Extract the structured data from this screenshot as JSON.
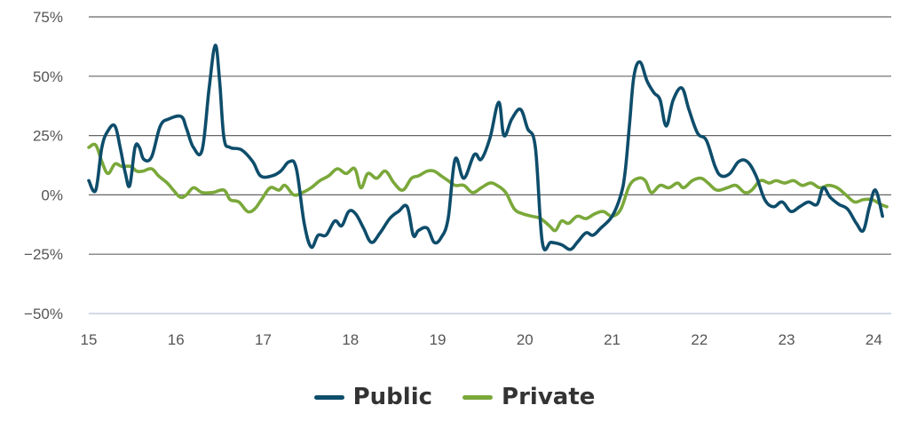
{
  "chart_data": {
    "type": "line",
    "title": "",
    "xlabel": "",
    "ylabel": "",
    "xlim": [
      15,
      24.2
    ],
    "ylim": [
      -50,
      75
    ],
    "x_ticks": [
      15,
      16,
      17,
      18,
      19,
      20,
      21,
      22,
      23,
      24
    ],
    "x_tick_labels": [
      "15",
      "16",
      "17",
      "18",
      "19",
      "20",
      "21",
      "22",
      "23",
      "24"
    ],
    "y_ticks": [
      -50,
      -25,
      0,
      25,
      50,
      75
    ],
    "y_tick_labels": [
      "−50%",
      "−25%",
      "0%",
      "25%",
      "50%",
      "75%"
    ],
    "grid": "horizontal",
    "legend_position": "bottom-center",
    "series": [
      {
        "name": "Public",
        "color": "#0e4d6b",
        "points": [
          [
            15.0,
            6
          ],
          [
            15.08,
            2
          ],
          [
            15.15,
            20
          ],
          [
            15.22,
            27
          ],
          [
            15.3,
            29
          ],
          [
            15.36,
            20
          ],
          [
            15.42,
            9
          ],
          [
            15.47,
            4
          ],
          [
            15.53,
            20
          ],
          [
            15.58,
            20
          ],
          [
            15.63,
            15
          ],
          [
            15.72,
            16
          ],
          [
            15.82,
            29
          ],
          [
            15.92,
            32
          ],
          [
            16.06,
            33
          ],
          [
            16.12,
            28
          ],
          [
            16.2,
            20
          ],
          [
            16.3,
            19
          ],
          [
            16.38,
            45
          ],
          [
            16.45,
            63
          ],
          [
            16.5,
            48
          ],
          [
            16.55,
            24
          ],
          [
            16.62,
            20
          ],
          [
            16.75,
            19
          ],
          [
            16.88,
            14
          ],
          [
            16.97,
            8
          ],
          [
            17.1,
            8
          ],
          [
            17.2,
            10
          ],
          [
            17.3,
            14
          ],
          [
            17.38,
            11
          ],
          [
            17.47,
            -12
          ],
          [
            17.55,
            -22
          ],
          [
            17.63,
            -17
          ],
          [
            17.72,
            -17
          ],
          [
            17.82,
            -11
          ],
          [
            17.9,
            -13
          ],
          [
            17.98,
            -7
          ],
          [
            18.06,
            -8
          ],
          [
            18.15,
            -14
          ],
          [
            18.24,
            -20
          ],
          [
            18.34,
            -16
          ],
          [
            18.45,
            -10
          ],
          [
            18.55,
            -7
          ],
          [
            18.65,
            -5
          ],
          [
            18.72,
            -17
          ],
          [
            18.78,
            -15
          ],
          [
            18.88,
            -14
          ],
          [
            18.96,
            -20
          ],
          [
            19.04,
            -18
          ],
          [
            19.12,
            -10
          ],
          [
            19.2,
            15
          ],
          [
            19.3,
            7
          ],
          [
            19.42,
            17
          ],
          [
            19.5,
            15
          ],
          [
            19.6,
            24
          ],
          [
            19.7,
            39
          ],
          [
            19.76,
            25
          ],
          [
            19.85,
            32
          ],
          [
            19.95,
            36
          ],
          [
            20.03,
            28
          ],
          [
            20.12,
            20
          ],
          [
            20.2,
            -20
          ],
          [
            20.3,
            -20
          ],
          [
            20.42,
            -21
          ],
          [
            20.52,
            -23
          ],
          [
            20.6,
            -20
          ],
          [
            20.7,
            -16
          ],
          [
            20.78,
            -17
          ],
          [
            20.87,
            -14
          ],
          [
            21.0,
            -9
          ],
          [
            21.1,
            0
          ],
          [
            21.15,
            10
          ],
          [
            21.2,
            30
          ],
          [
            21.25,
            50
          ],
          [
            21.32,
            56
          ],
          [
            21.4,
            48
          ],
          [
            21.48,
            43
          ],
          [
            21.55,
            40
          ],
          [
            21.62,
            29
          ],
          [
            21.7,
            40
          ],
          [
            21.8,
            45
          ],
          [
            21.88,
            36
          ],
          [
            21.98,
            26
          ],
          [
            22.08,
            23
          ],
          [
            22.18,
            12
          ],
          [
            22.25,
            8
          ],
          [
            22.35,
            9
          ],
          [
            22.45,
            14
          ],
          [
            22.55,
            14
          ],
          [
            22.65,
            8
          ],
          [
            22.75,
            -2
          ],
          [
            22.85,
            -5
          ],
          [
            22.95,
            -3
          ],
          [
            23.05,
            -7
          ],
          [
            23.15,
            -5
          ],
          [
            23.25,
            -3
          ],
          [
            23.35,
            -4
          ],
          [
            23.42,
            3
          ],
          [
            23.5,
            -1
          ],
          [
            23.6,
            -4
          ],
          [
            23.7,
            -6
          ],
          [
            23.8,
            -12
          ],
          [
            23.88,
            -15
          ],
          [
            23.95,
            -5
          ],
          [
            24.02,
            2
          ],
          [
            24.1,
            -9
          ]
        ]
      },
      {
        "name": "Private",
        "color": "#7aa83a",
        "points": [
          [
            15.0,
            20
          ],
          [
            15.08,
            21
          ],
          [
            15.15,
            14
          ],
          [
            15.22,
            9
          ],
          [
            15.3,
            13
          ],
          [
            15.38,
            12
          ],
          [
            15.48,
            12
          ],
          [
            15.55,
            10
          ],
          [
            15.62,
            10
          ],
          [
            15.72,
            11
          ],
          [
            15.8,
            8
          ],
          [
            15.9,
            5
          ],
          [
            15.97,
            2
          ],
          [
            16.05,
            -1
          ],
          [
            16.12,
            0
          ],
          [
            16.2,
            3
          ],
          [
            16.3,
            1
          ],
          [
            16.42,
            1
          ],
          [
            16.55,
            2
          ],
          [
            16.62,
            -2
          ],
          [
            16.72,
            -3
          ],
          [
            16.82,
            -7
          ],
          [
            16.9,
            -6
          ],
          [
            16.98,
            -2
          ],
          [
            17.08,
            3
          ],
          [
            17.18,
            2
          ],
          [
            17.25,
            4
          ],
          [
            17.35,
            0
          ],
          [
            17.45,
            1
          ],
          [
            17.55,
            3
          ],
          [
            17.65,
            6
          ],
          [
            17.75,
            8
          ],
          [
            17.85,
            11
          ],
          [
            17.95,
            9
          ],
          [
            18.05,
            11
          ],
          [
            18.12,
            3
          ],
          [
            18.2,
            9
          ],
          [
            18.3,
            7
          ],
          [
            18.4,
            10
          ],
          [
            18.5,
            5
          ],
          [
            18.6,
            2
          ],
          [
            18.7,
            7
          ],
          [
            18.78,
            8
          ],
          [
            18.88,
            10
          ],
          [
            18.96,
            10
          ],
          [
            19.04,
            8
          ],
          [
            19.12,
            6
          ],
          [
            19.2,
            4
          ],
          [
            19.3,
            4
          ],
          [
            19.4,
            1
          ],
          [
            19.5,
            3
          ],
          [
            19.6,
            5
          ],
          [
            19.68,
            4
          ],
          [
            19.78,
            1
          ],
          [
            19.88,
            -6
          ],
          [
            19.98,
            -8
          ],
          [
            20.08,
            -9
          ],
          [
            20.18,
            -10
          ],
          [
            20.28,
            -13
          ],
          [
            20.35,
            -15
          ],
          [
            20.42,
            -11
          ],
          [
            20.5,
            -12
          ],
          [
            20.6,
            -9
          ],
          [
            20.7,
            -10
          ],
          [
            20.8,
            -8
          ],
          [
            20.9,
            -7
          ],
          [
            21.0,
            -9
          ],
          [
            21.1,
            -6
          ],
          [
            21.2,
            4
          ],
          [
            21.3,
            7
          ],
          [
            21.38,
            6
          ],
          [
            21.45,
            1
          ],
          [
            21.55,
            4
          ],
          [
            21.65,
            3
          ],
          [
            21.75,
            5
          ],
          [
            21.82,
            3
          ],
          [
            21.92,
            6
          ],
          [
            22.02,
            7
          ],
          [
            22.1,
            5
          ],
          [
            22.2,
            2
          ],
          [
            22.32,
            3
          ],
          [
            22.42,
            4
          ],
          [
            22.52,
            1
          ],
          [
            22.6,
            2
          ],
          [
            22.7,
            6
          ],
          [
            22.8,
            5
          ],
          [
            22.88,
            6
          ],
          [
            22.98,
            5
          ],
          [
            23.08,
            6
          ],
          [
            23.18,
            4
          ],
          [
            23.28,
            5
          ],
          [
            23.38,
            3
          ],
          [
            23.48,
            4
          ],
          [
            23.58,
            3
          ],
          [
            23.68,
            0
          ],
          [
            23.78,
            -3
          ],
          [
            23.88,
            -2
          ],
          [
            23.98,
            -2
          ],
          [
            24.08,
            -4
          ],
          [
            24.15,
            -5
          ]
        ]
      }
    ]
  }
}
